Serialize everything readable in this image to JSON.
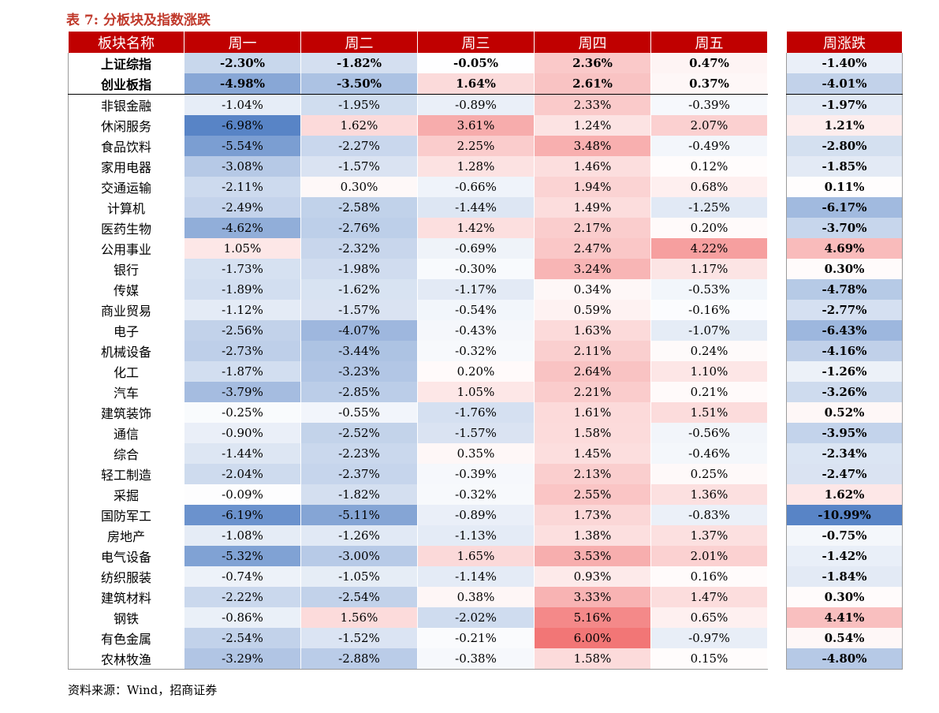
{
  "title": "表 7:  分板块及指数涨跌",
  "source": "资料来源：Wind，招商证券",
  "colors": {
    "header_bg": "#c00000",
    "title_color": "#c0392b",
    "positive": "#f07070",
    "negative": "#5b87c5"
  },
  "table": {
    "headers": [
      "板块名称",
      "周一",
      "周二",
      "周三",
      "周四",
      "周五"
    ],
    "weekly_header": "周涨跌",
    "indices": [
      {
        "name": "上证综指",
        "values": [
          "-2.30%",
          "-1.82%",
          "-0.05%",
          "2.36%",
          "0.47%"
        ],
        "weekly": "-1.40%"
      },
      {
        "name": "创业板指",
        "values": [
          "-4.98%",
          "-3.50%",
          "1.64%",
          "2.61%",
          "0.37%"
        ],
        "weekly": "-4.01%"
      }
    ],
    "sectors": [
      {
        "name": "非银金融",
        "values": [
          "-1.04%",
          "-1.95%",
          "-0.89%",
          "2.33%",
          "-0.39%"
        ],
        "weekly": "-1.97%"
      },
      {
        "name": "休闲服务",
        "values": [
          "-6.98%",
          "1.62%",
          "3.61%",
          "1.24%",
          "2.07%"
        ],
        "weekly": "1.21%"
      },
      {
        "name": "食品饮料",
        "values": [
          "-5.54%",
          "-2.27%",
          "2.25%",
          "3.48%",
          "-0.49%"
        ],
        "weekly": "-2.80%"
      },
      {
        "name": "家用电器",
        "values": [
          "-3.08%",
          "-1.57%",
          "1.28%",
          "1.46%",
          "0.12%"
        ],
        "weekly": "-1.85%"
      },
      {
        "name": "交通运输",
        "values": [
          "-2.11%",
          "0.30%",
          "-0.66%",
          "1.94%",
          "0.68%"
        ],
        "weekly": "0.11%"
      },
      {
        "name": "计算机",
        "values": [
          "-2.49%",
          "-2.58%",
          "-1.44%",
          "1.49%",
          "-1.25%"
        ],
        "weekly": "-6.17%"
      },
      {
        "name": "医药生物",
        "values": [
          "-4.62%",
          "-2.76%",
          "1.42%",
          "2.17%",
          "0.20%"
        ],
        "weekly": "-3.70%"
      },
      {
        "name": "公用事业",
        "values": [
          "1.05%",
          "-2.32%",
          "-0.69%",
          "2.47%",
          "4.22%"
        ],
        "weekly": "4.69%"
      },
      {
        "name": "银行",
        "values": [
          "-1.73%",
          "-1.98%",
          "-0.30%",
          "3.24%",
          "1.17%"
        ],
        "weekly": "0.30%"
      },
      {
        "name": "传媒",
        "values": [
          "-1.89%",
          "-1.62%",
          "-1.17%",
          "0.34%",
          "-0.53%"
        ],
        "weekly": "-4.78%"
      },
      {
        "name": "商业贸易",
        "values": [
          "-1.12%",
          "-1.57%",
          "-0.54%",
          "0.59%",
          "-0.16%"
        ],
        "weekly": "-2.77%"
      },
      {
        "name": "电子",
        "values": [
          "-2.56%",
          "-4.07%",
          "-0.43%",
          "1.63%",
          "-1.07%"
        ],
        "weekly": "-6.43%"
      },
      {
        "name": "机械设备",
        "values": [
          "-2.73%",
          "-3.44%",
          "-0.32%",
          "2.11%",
          "0.24%"
        ],
        "weekly": "-4.16%"
      },
      {
        "name": "化工",
        "values": [
          "-1.87%",
          "-3.23%",
          "0.20%",
          "2.64%",
          "1.10%"
        ],
        "weekly": "-1.26%"
      },
      {
        "name": "汽车",
        "values": [
          "-3.79%",
          "-2.85%",
          "1.05%",
          "2.21%",
          "0.21%"
        ],
        "weekly": "-3.26%"
      },
      {
        "name": "建筑装饰",
        "values": [
          "-0.25%",
          "-0.55%",
          "-1.76%",
          "1.61%",
          "1.51%"
        ],
        "weekly": "0.52%"
      },
      {
        "name": "通信",
        "values": [
          "-0.90%",
          "-2.52%",
          "-1.57%",
          "1.58%",
          "-0.56%"
        ],
        "weekly": "-3.95%"
      },
      {
        "name": "综合",
        "values": [
          "-1.44%",
          "-2.23%",
          "0.35%",
          "1.45%",
          "-0.46%"
        ],
        "weekly": "-2.34%"
      },
      {
        "name": "轻工制造",
        "values": [
          "-2.04%",
          "-2.37%",
          "-0.39%",
          "2.13%",
          "0.25%"
        ],
        "weekly": "-2.47%"
      },
      {
        "name": "采掘",
        "values": [
          "-0.09%",
          "-1.82%",
          "-0.32%",
          "2.55%",
          "1.36%"
        ],
        "weekly": "1.62%"
      },
      {
        "name": "国防军工",
        "values": [
          "-6.19%",
          "-5.11%",
          "-0.89%",
          "1.73%",
          "-0.83%"
        ],
        "weekly": "-10.99%"
      },
      {
        "name": "房地产",
        "values": [
          "-1.08%",
          "-1.26%",
          "-1.13%",
          "1.38%",
          "1.37%"
        ],
        "weekly": "-0.75%"
      },
      {
        "name": "电气设备",
        "values": [
          "-5.32%",
          "-3.00%",
          "1.65%",
          "3.53%",
          "2.01%"
        ],
        "weekly": "-1.42%"
      },
      {
        "name": "纺织服装",
        "values": [
          "-0.74%",
          "-1.05%",
          "-1.14%",
          "0.93%",
          "0.16%"
        ],
        "weekly": "-1.84%"
      },
      {
        "name": "建筑材料",
        "values": [
          "-2.22%",
          "-2.54%",
          "0.38%",
          "3.33%",
          "1.47%"
        ],
        "weekly": "0.30%"
      },
      {
        "name": "钢铁",
        "values": [
          "-0.86%",
          "1.56%",
          "-2.02%",
          "5.16%",
          "0.65%"
        ],
        "weekly": "4.41%"
      },
      {
        "name": "有色金属",
        "values": [
          "-2.54%",
          "-1.52%",
          "-0.21%",
          "6.00%",
          "-0.97%"
        ],
        "weekly": "0.54%"
      },
      {
        "name": "农林牧渔",
        "values": [
          "-3.29%",
          "-2.88%",
          "-0.38%",
          "1.58%",
          "0.15%"
        ],
        "weekly": "-4.80%"
      }
    ]
  }
}
